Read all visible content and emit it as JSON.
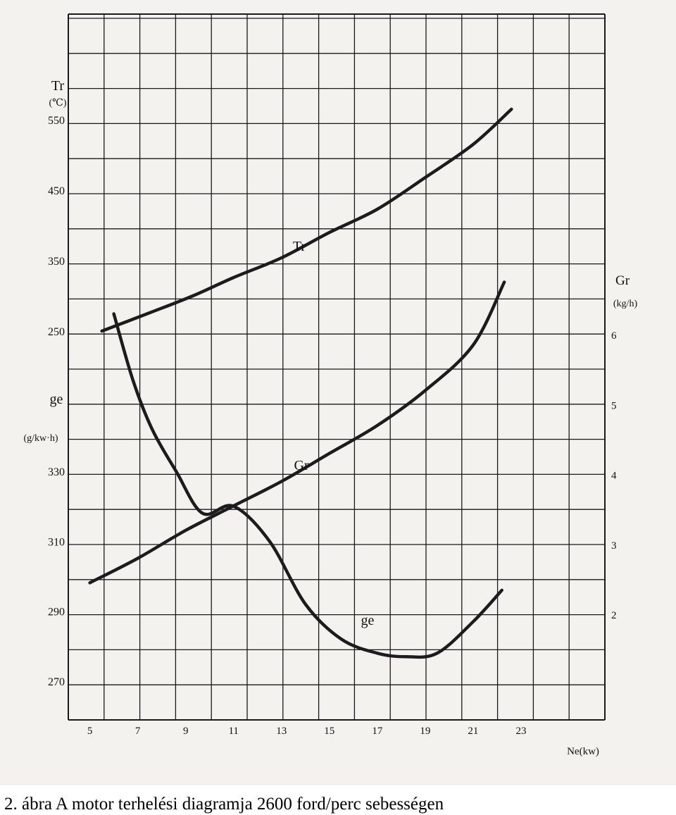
{
  "caption": "2. ábra A motor terhelési diagramja 2600 ford/perc sebességen",
  "chart_data": {
    "type": "line",
    "title": "",
    "x_axis": {
      "label": "Ne(kw)",
      "range": [
        4.1,
        26.5
      ],
      "ticks": [
        5,
        7,
        9,
        11,
        13,
        15,
        17,
        19,
        21,
        23
      ]
    },
    "left_axis_upper": {
      "symbol": "Tr",
      "unit": "(℃)",
      "range": [
        250,
        550
      ],
      "ticks": [
        250,
        350,
        450,
        550
      ]
    },
    "left_axis_lower": {
      "symbol": "ge",
      "unit": "(g/kw·h)",
      "range": [
        270,
        330
      ],
      "ticks": [
        270,
        290,
        310,
        330
      ]
    },
    "right_axis": {
      "symbol": "Gr",
      "unit": "(kg/h)",
      "range": [
        2,
        6
      ],
      "ticks": [
        2,
        3,
        4,
        5,
        6
      ]
    },
    "grid": true,
    "series": [
      {
        "name": "Tr",
        "axis": "left_axis_upper",
        "x": [
          5.5,
          7.5,
          9.3,
          11,
          13,
          15,
          17,
          19,
          21,
          22.6
        ],
        "y": [
          250,
          276,
          300,
          326,
          354,
          390,
          423,
          468,
          515,
          565
        ]
      },
      {
        "name": "Gr",
        "axis": "right_axis",
        "x": [
          5,
          7,
          9,
          11,
          13,
          15,
          17,
          19,
          21,
          22.3
        ],
        "y": [
          2.45,
          2.8,
          3.2,
          3.55,
          3.9,
          4.3,
          4.7,
          5.2,
          5.85,
          6.75
        ]
      },
      {
        "name": "ge",
        "axis": "left_axis_lower",
        "x": [
          6.0,
          6.8,
          7.6,
          8.6,
          9.7,
          11,
          12.5,
          14,
          15.5,
          17,
          18.2,
          19.5,
          21,
          22.2
        ],
        "y": [
          375,
          356,
          342,
          330,
          318,
          320,
          310,
          292,
          282,
          278,
          277,
          278,
          287,
          296
        ]
      }
    ]
  }
}
